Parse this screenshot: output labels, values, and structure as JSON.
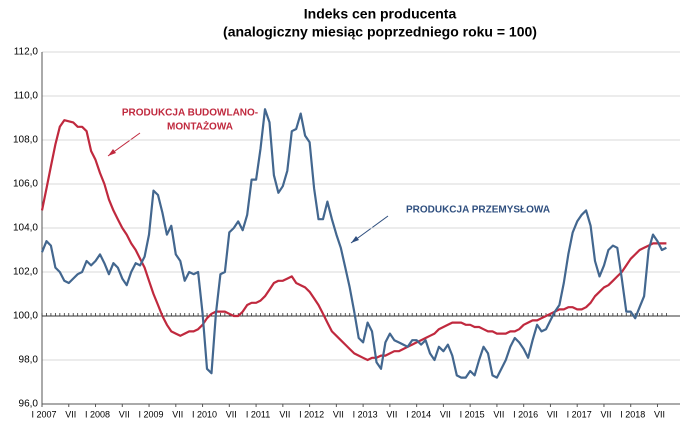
{
  "chart_data": {
    "type": "line",
    "title": "Indeks cen producenta",
    "subtitle": "(analogiczny miesiąc poprzedniego roku = 100)",
    "annotations": [
      {
        "lines": [
          "PRODUKCJA BUDOWLANO-",
          "MONTAŻOWA"
        ],
        "color": "#c0293e"
      },
      {
        "lines": [
          "PRODUKCJA PRZEMYSŁOWA"
        ],
        "color": "#2f4f7f"
      }
    ],
    "ylim": [
      96,
      112
    ],
    "yticks": [
      {
        "value": 96,
        "label": "96,0"
      },
      {
        "value": 98,
        "label": "98,0"
      },
      {
        "value": 100,
        "label": "100,0"
      },
      {
        "value": 102,
        "label": "102,0"
      },
      {
        "value": 104,
        "label": "104,0"
      },
      {
        "value": 106,
        "label": "106,0"
      },
      {
        "value": 108,
        "label": "108,0"
      },
      {
        "value": 110,
        "label": "110,0"
      },
      {
        "value": 112,
        "label": "112,0"
      }
    ],
    "grid": true,
    "categories": [
      "I 2007",
      null,
      null,
      null,
      null,
      null,
      "VII",
      null,
      null,
      null,
      null,
      null,
      "I 2008",
      null,
      null,
      null,
      null,
      null,
      "VII",
      null,
      null,
      null,
      null,
      null,
      "I 2009",
      null,
      null,
      null,
      null,
      null,
      "VII",
      null,
      null,
      null,
      null,
      null,
      "I 2010",
      null,
      null,
      null,
      null,
      null,
      "VII",
      null,
      null,
      null,
      null,
      null,
      "I 2011",
      null,
      null,
      null,
      null,
      null,
      "VII",
      null,
      null,
      null,
      null,
      null,
      "I 2012",
      null,
      null,
      null,
      null,
      null,
      "VII",
      null,
      null,
      null,
      null,
      null,
      "I 2013",
      null,
      null,
      null,
      null,
      null,
      "VII",
      null,
      null,
      null,
      null,
      null,
      "I 2014",
      null,
      null,
      null,
      null,
      null,
      "VII",
      null,
      null,
      null,
      null,
      null,
      "I 2015",
      null,
      null,
      null,
      null,
      null,
      "VII",
      null,
      null,
      null,
      null,
      null,
      "I 2016",
      null,
      null,
      null,
      null,
      null,
      "VII",
      null,
      null,
      null,
      null,
      null,
      "I 2017",
      null,
      null,
      null,
      null,
      null,
      "VII",
      null,
      null,
      null,
      null,
      null,
      "I 2018",
      null,
      null,
      null,
      null,
      null,
      "VII",
      null,
      null
    ],
    "series": [
      {
        "color": "#c0293e",
        "values": [
          104.8,
          105.8,
          106.8,
          107.8,
          108.6,
          108.9,
          108.85,
          108.8,
          108.6,
          108.6,
          108.4,
          107.5,
          107.1,
          106.5,
          106.0,
          105.3,
          104.8,
          104.4,
          104.0,
          103.7,
          103.3,
          103.0,
          102.6,
          102.2,
          101.6,
          101.0,
          100.5,
          100.0,
          99.6,
          99.3,
          99.2,
          99.1,
          99.2,
          99.3,
          99.3,
          99.4,
          99.6,
          99.9,
          100.1,
          100.2,
          100.2,
          100.2,
          100.1,
          100.0,
          100.0,
          100.2,
          100.5,
          100.6,
          100.6,
          100.7,
          100.9,
          101.2,
          101.5,
          101.6,
          101.6,
          101.7,
          101.8,
          101.5,
          101.4,
          101.3,
          101.1,
          100.8,
          100.5,
          100.1,
          99.7,
          99.3,
          99.1,
          98.9,
          98.7,
          98.5,
          98.3,
          98.2,
          98.1,
          98.0,
          98.1,
          98.1,
          98.2,
          98.2,
          98.3,
          98.4,
          98.4,
          98.5,
          98.6,
          98.7,
          98.8,
          98.9,
          99.0,
          99.1,
          99.2,
          99.4,
          99.5,
          99.6,
          99.7,
          99.7,
          99.7,
          99.6,
          99.6,
          99.5,
          99.5,
          99.4,
          99.3,
          99.3,
          99.2,
          99.2,
          99.2,
          99.3,
          99.3,
          99.4,
          99.6,
          99.7,
          99.8,
          99.8,
          99.9,
          100.0,
          100.1,
          100.2,
          100.3,
          100.3,
          100.4,
          100.4,
          100.3,
          100.3,
          100.4,
          100.6,
          100.9,
          101.1,
          101.3,
          101.4,
          101.6,
          101.8,
          102.0,
          102.3,
          102.6,
          102.8,
          103.0,
          103.1,
          103.2,
          103.3,
          103.3,
          103.3,
          103.3
        ]
      },
      {
        "color": "#43678f",
        "values": [
          102.9,
          103.4,
          103.2,
          102.2,
          102.0,
          101.6,
          101.5,
          101.7,
          101.9,
          102.0,
          102.5,
          102.3,
          102.5,
          102.8,
          102.4,
          101.9,
          102.4,
          102.2,
          101.7,
          101.4,
          102.0,
          102.4,
          102.3,
          102.7,
          103.7,
          105.7,
          105.5,
          104.7,
          103.7,
          104.1,
          102.8,
          102.5,
          101.6,
          102.0,
          101.9,
          102.0,
          100.1,
          97.6,
          97.4,
          100.1,
          101.9,
          102.0,
          103.8,
          104.0,
          104.3,
          103.9,
          104.6,
          106.2,
          106.2,
          107.6,
          109.4,
          108.8,
          106.4,
          105.6,
          105.9,
          106.6,
          108.4,
          108.5,
          109.2,
          108.2,
          107.9,
          105.8,
          104.4,
          104.4,
          105.2,
          104.4,
          103.7,
          103.1,
          102.2,
          101.3,
          100.2,
          99.0,
          98.8,
          99.7,
          99.3,
          97.9,
          97.6,
          98.8,
          99.2,
          98.9,
          98.8,
          98.7,
          98.6,
          98.9,
          98.9,
          98.7,
          98.9,
          98.3,
          98.0,
          98.6,
          98.4,
          98.7,
          98.2,
          97.3,
          97.2,
          97.2,
          97.5,
          97.3,
          98.0,
          98.6,
          98.3,
          97.3,
          97.2,
          97.6,
          98.0,
          98.6,
          99.0,
          98.8,
          98.5,
          98.1,
          98.9,
          99.6,
          99.3,
          99.4,
          99.8,
          100.2,
          100.5,
          101.5,
          102.8,
          103.8,
          104.3,
          104.6,
          104.8,
          104.1,
          102.5,
          101.8,
          102.3,
          103.0,
          103.2,
          103.1,
          101.7,
          100.2,
          100.2,
          99.9,
          100.4,
          100.9,
          103.0,
          103.7,
          103.4,
          103.0,
          103.1
        ]
      }
    ]
  }
}
